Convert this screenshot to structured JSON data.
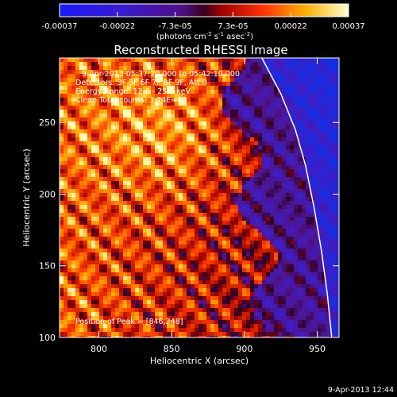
{
  "chart_data": {
    "type": "heatmap",
    "title": "Reconstructed RHESSI Image",
    "xlabel": "Heliocentric X (arcsec)",
    "ylabel": "Heliocentric Y (arcsec)",
    "xlim": [
      773,
      965
    ],
    "ylim": [
      100,
      295
    ],
    "xticks": [
      "800",
      "850",
      "900",
      "950"
    ],
    "yticks": [
      "100",
      "150",
      "200",
      "250"
    ],
    "colorbar": {
      "ticks": [
        "-0.00037",
        "-0.00022",
        "-7.3e-05",
        "7.3e-05",
        "0.00022",
        "0.00037"
      ],
      "unit_text": "(photons cm",
      "unit_exp1": "-2",
      "unit_mid": " s",
      "unit_exp2": "-1",
      "unit_end": " asec",
      "unit_exp3": "-2",
      "unit_close": ")",
      "range": [
        -0.00037,
        0.00037
      ]
    },
    "annotations": [
      "9-Apr-2013 05:37:20.000 to 05:42:10.000",
      "Detectors: 3F 5F 6F 7F 8F 9F, Att 0",
      "Energy Range: 12.0 - 25.0 keV",
      "Clean     Total counts: 3.74E+03"
    ],
    "peak_text": "Position of Peak = [846,248]",
    "peak": [
      846,
      248
    ],
    "limb_curve": [
      [
        912,
        295
      ],
      [
        925,
        270
      ],
      [
        935,
        245
      ],
      [
        942,
        220
      ],
      [
        948,
        190
      ],
      [
        953,
        160
      ],
      [
        957,
        130
      ],
      [
        960,
        100
      ]
    ],
    "footer_date": "9-Apr-2013 12:44",
    "colors": {
      "background": "#000000",
      "limb": "#ffffff",
      "disk_low": "#2a0a70",
      "disk_deep": "#1030e0",
      "bright": "#ffffa0"
    }
  }
}
